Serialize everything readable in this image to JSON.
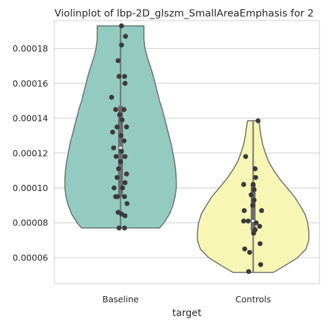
{
  "chart_data": {
    "type": "violin",
    "title": "Violinplot of lbp-2D_glszm_SmallAreaEmphasis for 2",
    "xlabel": "target",
    "ylabel": "",
    "ylim": [
      4.5e-05,
      0.000196
    ],
    "yticks": [
      "0.00006",
      "0.00008",
      "0.00010",
      "0.00012",
      "0.00014",
      "0.00016",
      "0.00018"
    ],
    "grid": true,
    "categories": [
      "Baseline",
      "Controls"
    ],
    "colors": {
      "Baseline": "#93cbc0",
      "Controls": "#f7f6b5",
      "outline": "#6b6b6b",
      "points": "#3a3a3a",
      "grid": "#cccccc",
      "box": "#6e6e6e"
    },
    "series": [
      {
        "name": "Baseline",
        "min": 7.7e-05,
        "max": 0.000193,
        "q1": 9.5e-05,
        "median": 0.000123,
        "q3": 0.000147,
        "profile": [
          [
            7.7e-05,
            0.7
          ],
          [
            8e-05,
            0.78
          ],
          [
            8.5e-05,
            0.88
          ],
          [
            9e-05,
            0.94
          ],
          [
            9.5e-05,
            0.98
          ],
          [
            0.0001,
            1.0
          ],
          [
            0.000105,
            1.0
          ],
          [
            0.00011,
            0.99
          ],
          [
            0.000115,
            0.97
          ],
          [
            0.00012,
            0.94
          ],
          [
            0.000125,
            0.91
          ],
          [
            0.00013,
            0.87
          ],
          [
            0.000135,
            0.83
          ],
          [
            0.00014,
            0.79
          ],
          [
            0.000145,
            0.75
          ],
          [
            0.00015,
            0.7
          ],
          [
            0.000155,
            0.66
          ],
          [
            0.00016,
            0.62
          ],
          [
            0.000165,
            0.58
          ],
          [
            0.00017,
            0.53
          ],
          [
            0.000175,
            0.48
          ],
          [
            0.00018,
            0.44
          ],
          [
            0.000185,
            0.42
          ],
          [
            0.00019,
            0.42
          ],
          [
            0.000193,
            0.42
          ]
        ],
        "points": [
          [
            0.02,
            0.000193
          ],
          [
            0.1,
            0.000187
          ],
          [
            0.02,
            0.000182
          ],
          [
            -0.05,
            0.000173
          ],
          [
            0.08,
            0.000164
          ],
          [
            -0.03,
            0.000164
          ],
          [
            0.09,
            0.00016
          ],
          [
            -0.18,
            0.000152
          ],
          [
            -0.1,
            0.000145
          ],
          [
            0.07,
            0.000145
          ],
          [
            -0.02,
            0.000142
          ],
          [
            0.03,
            0.000139
          ],
          [
            -0.07,
            0.000135
          ],
          [
            0.12,
            0.000135
          ],
          [
            -0.16,
            0.000132
          ],
          [
            0.01,
            0.00013
          ],
          [
            0.07,
            0.000127
          ],
          [
            -0.14,
            0.000123
          ],
          [
            0.02,
            0.000121
          ],
          [
            -0.09,
            0.000118
          ],
          [
            0.09,
            0.000118
          ],
          [
            0.0,
            0.000115
          ],
          [
            -0.04,
            0.000111
          ],
          [
            0.12,
            0.000108
          ],
          [
            -0.07,
            0.000106
          ],
          [
            0.09,
            0.000103
          ],
          [
            -0.13,
            0.0001
          ],
          [
            0.04,
            0.0001
          ],
          [
            -0.1,
            9.5e-05
          ],
          [
            -0.06,
            9.5e-05
          ],
          [
            0.08,
            9.5e-05
          ],
          [
            0.13,
            9.1e-05
          ],
          [
            -0.05,
            8.6e-05
          ],
          [
            0.02,
            8.5e-05
          ],
          [
            0.09,
            8.4e-05
          ],
          [
            -0.03,
            7.7e-05
          ],
          [
            0.08,
            7.7e-05
          ]
        ]
      },
      {
        "name": "Controls",
        "min": 5.15e-05,
        "max": 0.0001385,
        "q1": 7.5e-05,
        "median": 8.1e-05,
        "q3": 0.000102,
        "profile": [
          [
            5.15e-05,
            0.36
          ],
          [
            5.5e-05,
            0.55
          ],
          [
            6e-05,
            0.8
          ],
          [
            6.5e-05,
            0.95
          ],
          [
            7e-05,
            1.0
          ],
          [
            7.5e-05,
            1.0
          ],
          [
            8e-05,
            0.98
          ],
          [
            8.5e-05,
            0.93
          ],
          [
            9e-05,
            0.84
          ],
          [
            9.5e-05,
            0.74
          ],
          [
            0.0001,
            0.61
          ],
          [
            0.000105,
            0.48
          ],
          [
            0.00011,
            0.37
          ],
          [
            0.000115,
            0.28
          ],
          [
            0.00012,
            0.22
          ],
          [
            0.000125,
            0.17
          ],
          [
            0.00013,
            0.14
          ],
          [
            0.000135,
            0.12
          ],
          [
            0.0001385,
            0.1
          ]
        ],
        "points": [
          [
            0.1,
            0.0001385
          ],
          [
            -0.15,
            0.000118
          ],
          [
            0.04,
            0.000111
          ],
          [
            0.05,
            0.000106
          ],
          [
            -0.19,
            0.000102
          ],
          [
            0.0,
            0.000102
          ],
          [
            0.02,
            9.9e-05
          ],
          [
            -0.04,
            9.6e-05
          ],
          [
            0.02,
            9.3e-05
          ],
          [
            -0.01,
            9e-05
          ],
          [
            -0.18,
            8.7e-05
          ],
          [
            0.17,
            8.7e-05
          ],
          [
            -0.19,
            8.1e-05
          ],
          [
            -0.1,
            8.1e-05
          ],
          [
            0.06,
            8e-05
          ],
          [
            0.13,
            7.8e-05
          ],
          [
            0.04,
            7.6e-05
          ],
          [
            0.01,
            7.4e-05
          ],
          [
            0.14,
            6.8e-05
          ],
          [
            -0.17,
            6.5e-05
          ],
          [
            -0.07,
            6.3e-05
          ],
          [
            0.15,
            5.6e-05
          ],
          [
            -0.09,
            5.2e-05
          ]
        ]
      }
    ]
  }
}
